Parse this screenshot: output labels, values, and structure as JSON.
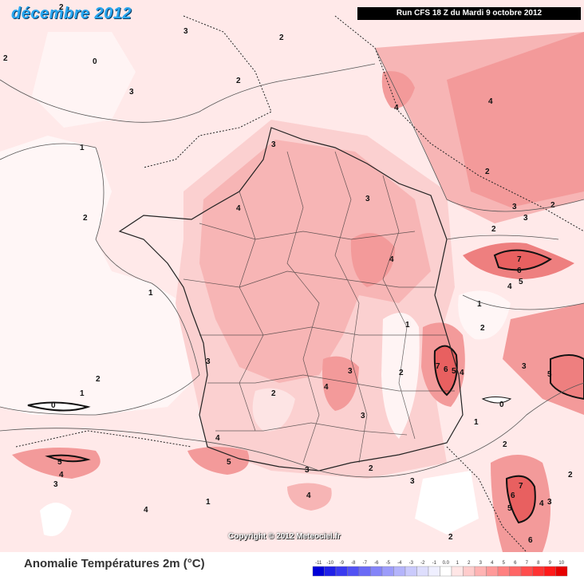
{
  "map": {
    "title": "décembre 2012",
    "run_info": "Run CFS 18 Z du Mardi 9 octobre 2012",
    "copyright": "Copyright © 2012 Meteociel.fr",
    "legend_label": "Anomalie Températures 2m (°C)",
    "colors": {
      "base": "#ffe9e9",
      "ocean_low": "#ffffff",
      "land_2": "#fbd0d0",
      "land_3": "#f7b5b5",
      "land_4": "#f39a9a",
      "land_5": "#ee7f7f",
      "land_6": "#e86060",
      "border": "#222222"
    },
    "scale": {
      "labels": [
        "-11",
        "-10",
        "-9",
        "-8",
        "-7",
        "-6",
        "-5",
        "-4",
        "-3",
        "-2",
        "-1",
        "0.0",
        "1",
        "2",
        "3",
        "4",
        "5",
        "6",
        "7",
        "8",
        "9",
        "10"
      ],
      "colors": [
        "#0000d8",
        "#2020e8",
        "#3a3af0",
        "#5252f4",
        "#6a6af6",
        "#8484f8",
        "#9c9cfa",
        "#b4b4fb",
        "#cacafc",
        "#dedefd",
        "#efefff",
        "#ffffff",
        "#ffe6e6",
        "#ffcccc",
        "#ffb3b3",
        "#ff9999",
        "#ff8080",
        "#ff6666",
        "#ff4d4d",
        "#ff3333",
        "#ff1a1a",
        "#e60000"
      ]
    },
    "contour_labels": [
      "0",
      "1",
      "2",
      "3",
      "4",
      "5",
      "6",
      "7"
    ]
  }
}
